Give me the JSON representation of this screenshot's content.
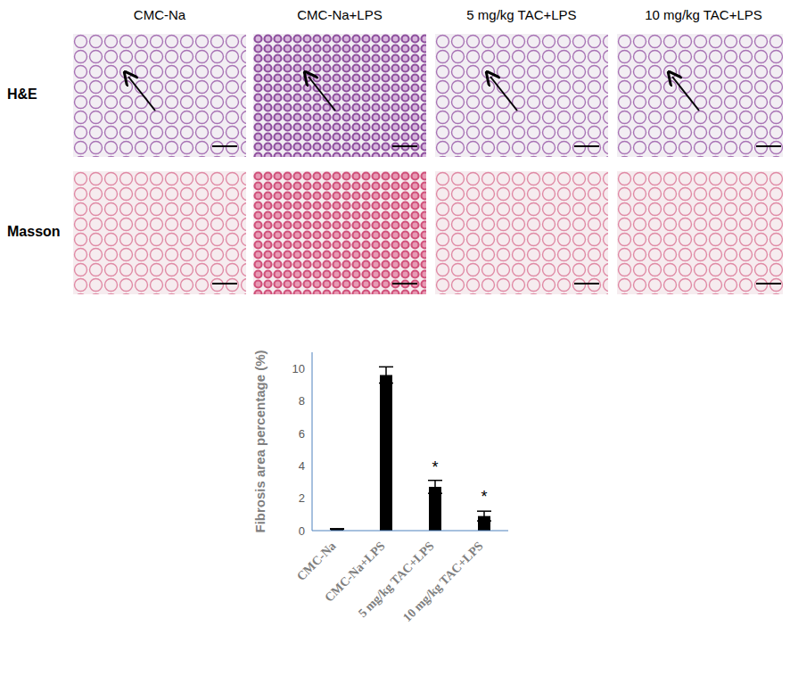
{
  "chart_data": {
    "type": "bar",
    "y_label": "Fibrosis area percentage (%)",
    "categories": [
      "CMC-Na",
      "CMC-Na+LPS",
      "5 mg/kg TAC+LPS",
      "10 mg/kg TAC+LPS"
    ],
    "values": [
      0.1,
      9.6,
      2.7,
      0.9
    ],
    "errors": [
      0.02,
      0.5,
      0.4,
      0.3
    ],
    "significance": [
      null,
      null,
      "*",
      "*"
    ],
    "color": "#000000",
    "ylim": [
      0,
      11
    ],
    "yticks": [
      0,
      2,
      4,
      6,
      8,
      10
    ],
    "grid": false
  },
  "panels": {
    "columns": [
      "CMC-Na",
      "CMC-Na+LPS",
      "5 mg/kg TAC+LPS",
      "10 mg/kg TAC+LPS"
    ],
    "rows": [
      "H&E",
      "Masson"
    ]
  }
}
